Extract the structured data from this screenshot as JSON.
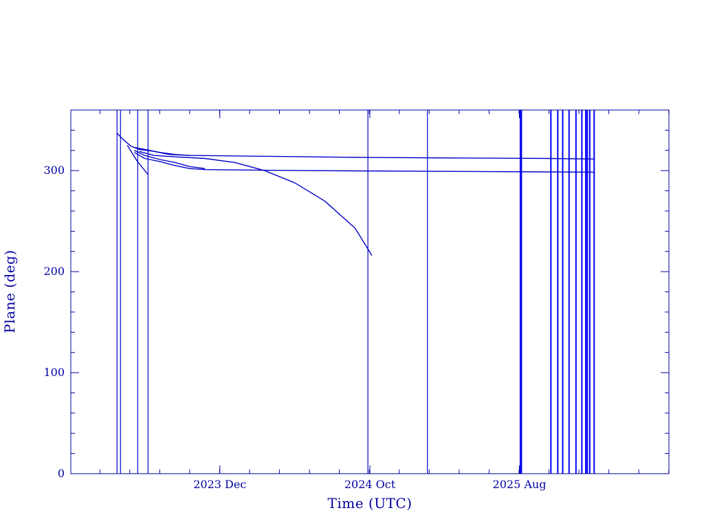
{
  "chart_data": {
    "type": "line",
    "title": "",
    "xlabel": "Time (UTC)",
    "ylabel": "Plane (deg)",
    "x_type": "time",
    "xlim": [
      "2023-02-01",
      "2026-06-01"
    ],
    "ylim": [
      0,
      360
    ],
    "x_ticks": [
      {
        "date": "2023-12-01",
        "label": "2023 Dec"
      },
      {
        "date": "2024-10-01",
        "label": "2024 Oct"
      },
      {
        "date": "2025-08-01",
        "label": "2025 Aug"
      }
    ],
    "y_ticks": [
      {
        "value": 0,
        "label": "0"
      },
      {
        "value": 100,
        "label": "100"
      },
      {
        "value": 200,
        "label": "200"
      },
      {
        "value": 300,
        "label": "300"
      }
    ],
    "grid": false,
    "colors": {
      "axis": "#0000a0",
      "line": "#0000c8",
      "bright_line": "#0000ff"
    },
    "vertical_markers": [
      "2023-05-06",
      "2023-05-13",
      "2023-06-17",
      "2023-07-08",
      "2024-09-27",
      "2025-01-26",
      "2025-08-03",
      "2025-08-05",
      "2025-10-04",
      "2025-10-18",
      "2025-10-28",
      "2025-11-10",
      "2025-11-24",
      "2025-12-06",
      "2025-12-14",
      "2025-12-17",
      "2025-12-22",
      "2025-12-31"
    ],
    "series": [
      {
        "points": [
          [
            "2023-05-06",
            337
          ],
          [
            "2023-05-20",
            330
          ],
          [
            "2023-06-04",
            324
          ],
          [
            "2023-06-20",
            321
          ],
          [
            "2023-07-20",
            319
          ],
          [
            "2023-08-20",
            316
          ],
          [
            "2023-10-01",
            315
          ],
          [
            "2024-04-01",
            314
          ],
          [
            "2024-10-01",
            313
          ],
          [
            "2025-04-01",
            312.5
          ],
          [
            "2025-10-01",
            312
          ],
          [
            "2025-12-31",
            311.5
          ]
        ]
      },
      {
        "points": [
          [
            "2023-06-10",
            323
          ],
          [
            "2023-07-01",
            321
          ],
          [
            "2023-08-01",
            318
          ],
          [
            "2023-09-01",
            316
          ],
          [
            "2023-10-01",
            315
          ]
        ]
      },
      {
        "points": [
          [
            "2023-06-20",
            319
          ],
          [
            "2023-07-20",
            315
          ],
          [
            "2023-08-20",
            314
          ],
          [
            "2023-11-01",
            312
          ],
          [
            "2024-01-01",
            308
          ],
          [
            "2024-03-01",
            300
          ],
          [
            "2024-05-01",
            288
          ],
          [
            "2024-07-01",
            270
          ],
          [
            "2024-09-01",
            243
          ],
          [
            "2024-10-05",
            216
          ]
        ]
      },
      {
        "points": [
          [
            "2023-06-10",
            318
          ],
          [
            "2023-07-01",
            312
          ],
          [
            "2023-08-01",
            309
          ],
          [
            "2023-09-01",
            305
          ],
          [
            "2023-10-01",
            302
          ],
          [
            "2023-11-01",
            301
          ],
          [
            "2024-06-01",
            300
          ],
          [
            "2025-06-01",
            299
          ],
          [
            "2025-12-31",
            298.5
          ]
        ]
      },
      {
        "points": [
          [
            "2023-06-10",
            320
          ],
          [
            "2023-07-01",
            315
          ],
          [
            "2023-08-01",
            311
          ],
          [
            "2023-09-01",
            308
          ],
          [
            "2023-10-01",
            304
          ],
          [
            "2023-11-01",
            302
          ]
        ]
      },
      {
        "points": [
          [
            "2023-05-27",
            325
          ],
          [
            "2023-06-15",
            310
          ],
          [
            "2023-07-08",
            296
          ]
        ]
      }
    ]
  }
}
